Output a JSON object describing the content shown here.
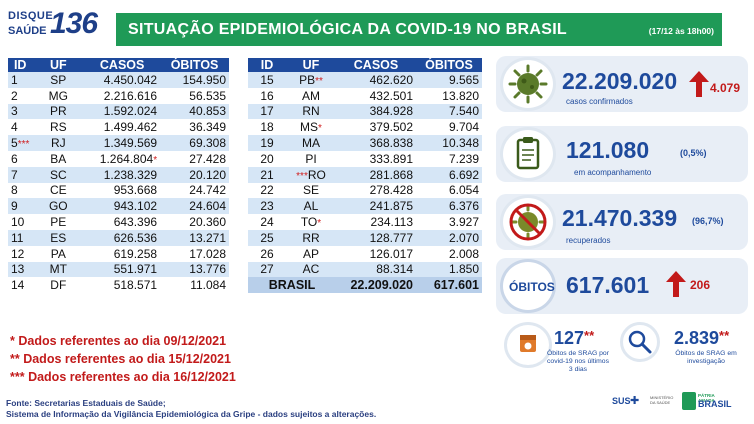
{
  "header": {
    "logo_line1": "DISQUE",
    "logo_line2": "SAÚDE",
    "logo_number": "136",
    "title": "SITUAÇÃO EPIDEMIOLÓGICA DA COVID-19 NO BRASIL",
    "date": "(17/12 às 18h00)"
  },
  "table_headers": {
    "id": "ID",
    "uf": "UF",
    "casos": "CASOS",
    "obitos": "ÓBITOS"
  },
  "table_left": [
    {
      "id": "1",
      "mark": "",
      "uf": "SP",
      "casos": "4.450.042",
      "casos_mark": "",
      "obitos": "154.950"
    },
    {
      "id": "2",
      "mark": "",
      "uf": "MG",
      "casos": "2.216.616",
      "casos_mark": "",
      "obitos": "56.535"
    },
    {
      "id": "3",
      "mark": "",
      "uf": "PR",
      "casos": "1.592.024",
      "casos_mark": "",
      "obitos": "40.853"
    },
    {
      "id": "4",
      "mark": "",
      "uf": "RS",
      "casos": "1.499.462",
      "casos_mark": "",
      "obitos": "36.349"
    },
    {
      "id": "5",
      "mark": "***",
      "uf": "RJ",
      "casos": "1.349.569",
      "casos_mark": "",
      "obitos": "69.308"
    },
    {
      "id": "6",
      "mark": "",
      "uf": "BA",
      "casos": "1.264.804",
      "casos_mark": "*",
      "obitos": "27.428"
    },
    {
      "id": "7",
      "mark": "",
      "uf": "SC",
      "casos": "1.238.329",
      "casos_mark": "",
      "obitos": "20.120"
    },
    {
      "id": "8",
      "mark": "",
      "uf": "CE",
      "casos": "953.668",
      "casos_mark": "",
      "obitos": "24.742"
    },
    {
      "id": "9",
      "mark": "",
      "uf": "GO",
      "casos": "943.102",
      "casos_mark": "",
      "obitos": "24.604"
    },
    {
      "id": "10",
      "mark": "",
      "uf": "PE",
      "casos": "643.396",
      "casos_mark": "",
      "obitos": "20.360"
    },
    {
      "id": "11",
      "mark": "",
      "uf": "ES",
      "casos": "626.536",
      "casos_mark": "",
      "obitos": "13.271"
    },
    {
      "id": "12",
      "mark": "",
      "uf": "PA",
      "casos": "619.258",
      "casos_mark": "",
      "obitos": "17.028"
    },
    {
      "id": "13",
      "mark": "",
      "uf": "MT",
      "casos": "551.971",
      "casos_mark": "",
      "obitos": "13.776"
    },
    {
      "id": "14",
      "mark": "",
      "uf": "DF",
      "casos": "518.571",
      "casos_mark": "",
      "obitos": "11.084"
    }
  ],
  "table_right": [
    {
      "id": "15",
      "uf": "PB",
      "uf_mark": "**",
      "casos": "462.620",
      "obitos": "9.565"
    },
    {
      "id": "16",
      "uf": "AM",
      "uf_mark": "",
      "casos": "432.501",
      "obitos": "13.820"
    },
    {
      "id": "17",
      "uf": "RN",
      "uf_mark": "",
      "casos": "384.928",
      "obitos": "7.540"
    },
    {
      "id": "18",
      "uf": "MS",
      "uf_mark": "*",
      "casos": "379.502",
      "obitos": "9.704"
    },
    {
      "id": "19",
      "uf": "MA",
      "uf_mark": "",
      "casos": "368.838",
      "obitos": "10.348"
    },
    {
      "id": "20",
      "uf": "PI",
      "uf_mark": "",
      "casos": "333.891",
      "obitos": "7.239"
    },
    {
      "id": "21",
      "uf": "RO",
      "uf_mark": "***",
      "mark_before": true,
      "casos": "281.868",
      "obitos": "6.692"
    },
    {
      "id": "22",
      "uf": "SE",
      "uf_mark": "",
      "casos": "278.428",
      "obitos": "6.054"
    },
    {
      "id": "23",
      "uf": "AL",
      "uf_mark": "",
      "casos": "241.875",
      "obitos": "6.376"
    },
    {
      "id": "24",
      "uf": "TO",
      "uf_mark": "*",
      "casos": "234.113",
      "obitos": "3.927"
    },
    {
      "id": "25",
      "uf": "RR",
      "uf_mark": "",
      "casos": "128.777",
      "obitos": "2.070"
    },
    {
      "id": "26",
      "uf": "AP",
      "uf_mark": "",
      "casos": "126.017",
      "obitos": "2.008"
    },
    {
      "id": "27",
      "uf": "AC",
      "uf_mark": "",
      "casos": "88.314",
      "obitos": "1.850"
    }
  ],
  "total": {
    "label": "BRASIL",
    "casos": "22.209.020",
    "obitos": "617.601"
  },
  "notes": [
    "* Dados referentes ao dia 09/12/2021",
    "** Dados referentes ao dia 15/12/2021",
    "*** Dados referentes ao dia 16/12/2021"
  ],
  "source": {
    "line1": "Fonte: Secretarias Estaduais de Saúde;",
    "line2": "Sistema de Informação da Vigilância Epidemiológica da Gripe - dados sujeitos a alterações."
  },
  "stats": {
    "confirmed": {
      "value": "22.209.020",
      "label": "casos confirmados",
      "delta": "4.079",
      "icon": "virus-icon"
    },
    "monitoring": {
      "value": "121.080",
      "pct": "(0,5%)",
      "label": "em acompanhamento",
      "icon": "clipboard-icon"
    },
    "recovered": {
      "value": "21.470.339",
      "pct": "(96,7%)",
      "label": "recuperados",
      "icon": "virus-crossed-icon"
    },
    "deaths": {
      "label": "ÓBITOS",
      "value": "617.601",
      "delta": "206"
    },
    "srag_deaths": {
      "value": "127",
      "mark": "**",
      "label_lines": [
        "Óbitos de SRAG por",
        "covid-19 nos últimos",
        "3 dias"
      ],
      "icon": "calendar-icon"
    },
    "srag_investigation": {
      "value": "2.839",
      "mark": "**",
      "label_lines": [
        "Óbitos de SRAG em",
        "investigação"
      ],
      "icon": "magnifier-icon"
    }
  },
  "footer": {
    "sus": "SUS",
    "ministry": "MINISTÉRIO DA SAÚDE",
    "gov_line1": "PÁTRIA AMADA",
    "gov_line2": "BRASIL"
  },
  "colors": {
    "green": "#1f9a57",
    "blue": "#1e4a9c",
    "light_blue": "#d6e6f6",
    "red": "#c21a1a",
    "card": "#e8eef6"
  }
}
